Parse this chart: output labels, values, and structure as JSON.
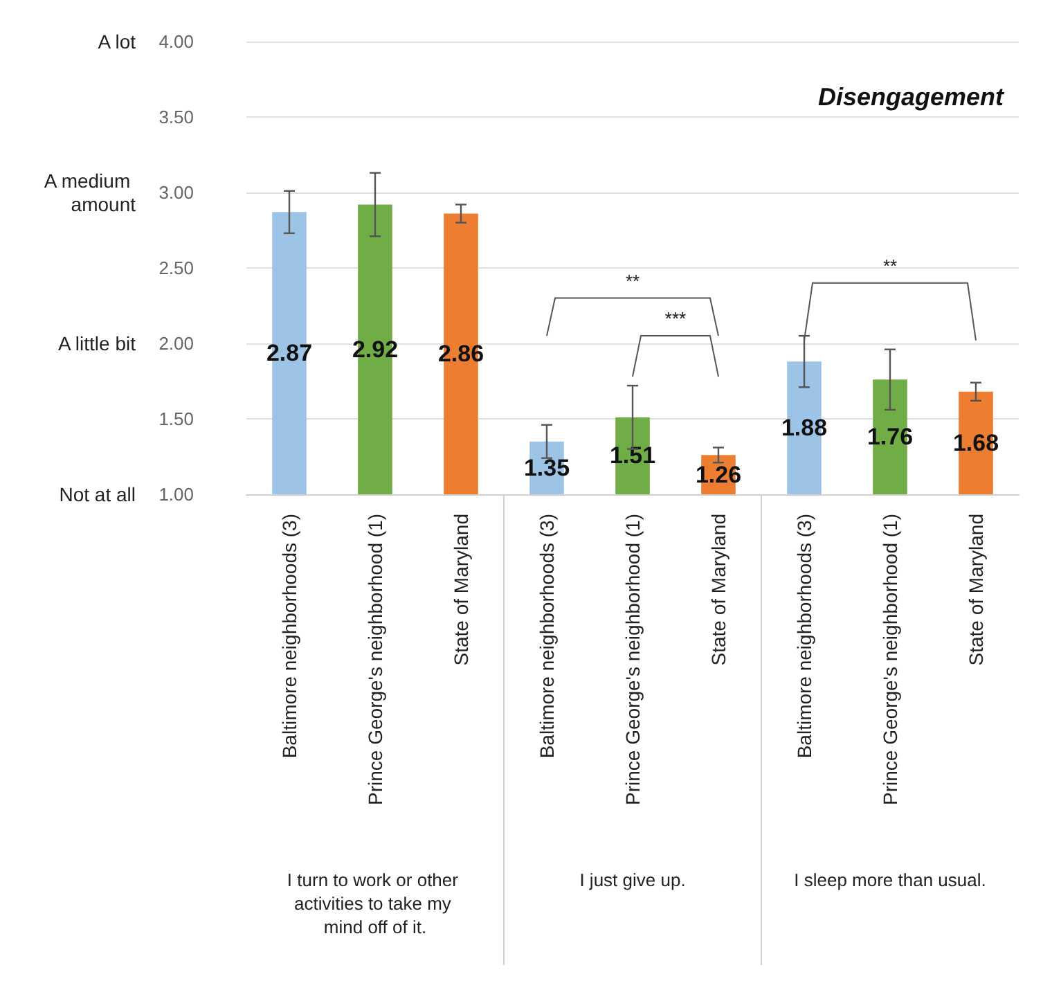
{
  "chart_data": {
    "type": "bar",
    "title": "Disengagement",
    "categories": [
      "Baltimore neighborhoods (3)",
      "Prince George's neighborhood (1)",
      "State of Maryland",
      "Baltimore neighborhoods (3)",
      "Prince George's neighborhood (1)",
      "State of Maryland",
      "Baltimore neighborhoods (3)",
      "Prince George's neighborhood (1)",
      "State of Maryland"
    ],
    "values": [
      2.87,
      2.92,
      2.86,
      1.35,
      1.51,
      1.26,
      1.88,
      1.76,
      1.68
    ],
    "colors": [
      "#9dc3e6",
      "#70ad47",
      "#ed7d31",
      "#9dc3e6",
      "#70ad47",
      "#ed7d31",
      "#9dc3e6",
      "#70ad47",
      "#ed7d31"
    ],
    "errors": [
      0.14,
      0.21,
      0.06,
      0.11,
      0.21,
      0.05,
      0.17,
      0.2,
      0.06
    ],
    "data_labels": true,
    "ylim": [
      1,
      4
    ],
    "yticks": [
      {
        "value": 1,
        "label": "1.00"
      },
      {
        "value": 1.5,
        "label": "1.50"
      },
      {
        "value": 2,
        "label": "2.00"
      },
      {
        "value": 2.5,
        "label": "2.50"
      },
      {
        "value": 3,
        "label": "3.00"
      },
      {
        "value": 3.5,
        "label": "3.50"
      },
      {
        "value": 4,
        "label": "4.00"
      }
    ],
    "grid": "y",
    "annotations": [
      "I turn to work or other activities to take my mind off of it.",
      "I just give up.",
      "I sleep more than usual.",
      "**",
      "***",
      "**",
      "Not at all",
      "A little bit",
      "A medium amount",
      "A lot"
    ]
  }
}
